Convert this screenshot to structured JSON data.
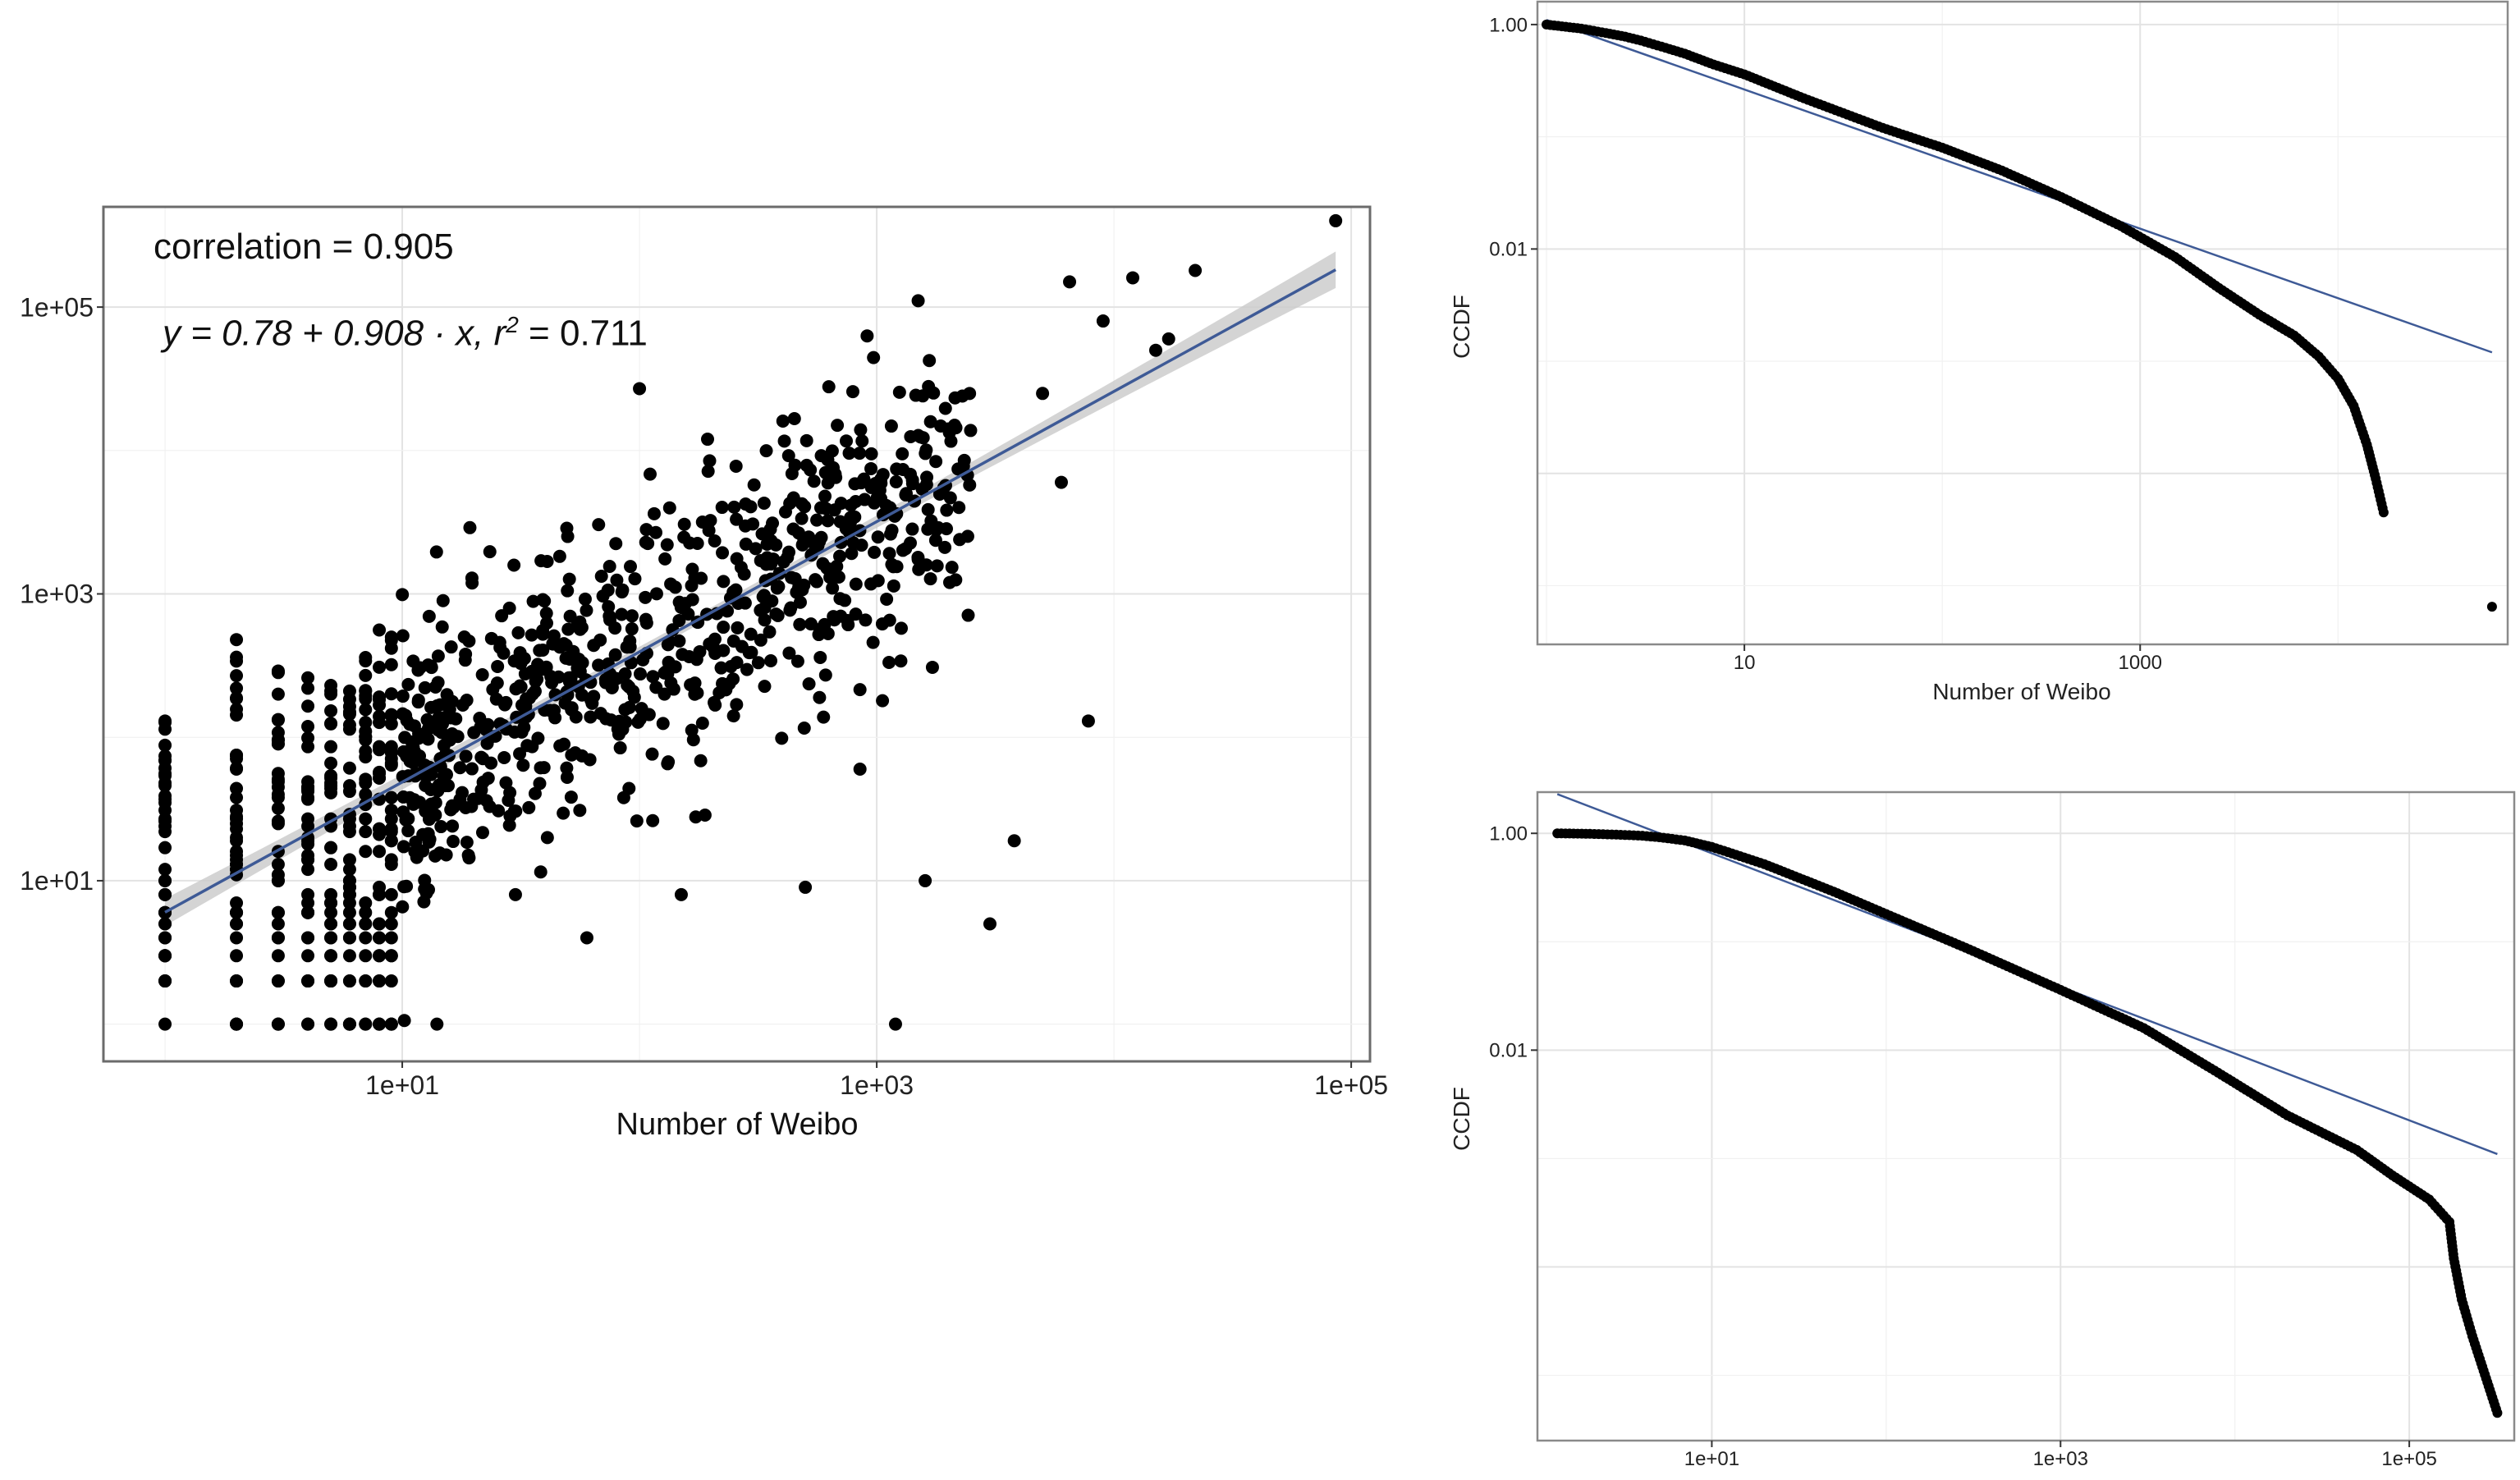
{
  "chart_data": [
    {
      "type": "scatter",
      "panel": "left",
      "xlabel": "Number of Weibo",
      "ylabel": "",
      "x_scale": "log10",
      "y_scale": "log10",
      "xlim": [
        0.55,
        120000
      ],
      "ylim": [
        0.55,
        500000
      ],
      "x_ticks": [
        "1e+01",
        "1e+03",
        "1e+05"
      ],
      "y_ticks": [
        "1e+01",
        "1e+03",
        "1e+05"
      ],
      "grid": true,
      "legend": "none",
      "annotations": {
        "correlation": "correlation = 0.905",
        "equation": "y = 0.78 + 0.908 · x,  r",
        "equation_exp": "2",
        "equation_tail": " = 0.711"
      },
      "fit": {
        "intercept": 0.78,
        "slope": 0.908,
        "r2": 0.711,
        "color": "#3e5a96",
        "band_color": "#c9c9c9"
      },
      "point_color": "#000000",
      "columns": [
        {
          "x": 1,
          "ymax": 130,
          "n": 40
        },
        {
          "x": 2,
          "ymax": 480,
          "n": 45
        },
        {
          "x": 3,
          "ymax": 290,
          "n": 35
        },
        {
          "x": 4,
          "ymax": 260,
          "n": 35
        },
        {
          "x": 5,
          "ymax": 230,
          "n": 35
        },
        {
          "x": 6,
          "ymax": 210,
          "n": 35
        },
        {
          "x": 7,
          "ymax": 360,
          "n": 30
        },
        {
          "x": 8,
          "ymax": 560,
          "n": 30
        },
        {
          "x": 9,
          "ymax": 500,
          "n": 30
        }
      ],
      "cloud": {
        "x_range": [
          10,
          2500
        ],
        "n": 760
      },
      "points": [
        {
          "x": 86000,
          "y": 400000
        },
        {
          "x": 22000,
          "y": 180000
        },
        {
          "x": 12000,
          "y": 160000
        },
        {
          "x": 6500,
          "y": 150000
        },
        {
          "x": 100,
          "y": 27000
        },
        {
          "x": 7800,
          "y": 130
        },
        {
          "x": 3800,
          "y": 19
        },
        {
          "x": 3000,
          "y": 5
        },
        {
          "x": 1600,
          "y": 10
        },
        {
          "x": 1200,
          "y": 1
        },
        {
          "x": 500,
          "y": 9
        },
        {
          "x": 850,
          "y": 60
        },
        {
          "x": 14,
          "y": 1
        },
        {
          "x": 30,
          "y": 8
        },
        {
          "x": 60,
          "y": 4
        },
        {
          "x": 150,
          "y": 8
        },
        {
          "x": 15000,
          "y": 50000
        },
        {
          "x": 17000,
          "y": 60000
        },
        {
          "x": 9000,
          "y": 80000
        },
        {
          "x": 5000,
          "y": 25000
        },
        {
          "x": 6000,
          "y": 6000
        }
      ]
    },
    {
      "type": "scatter",
      "panel": "top-right",
      "xlabel": "Number of Weibo",
      "ylabel": "CCDF",
      "x_scale": "log10",
      "y_scale": "log10",
      "xlim": [
        0.9,
        72000
      ],
      "ylim": [
        3e-06,
        1.6
      ],
      "x_ticks": [
        "10",
        "1000"
      ],
      "y_ticks": [
        "1.00",
        "0.01"
      ],
      "grid": true,
      "legend": "none",
      "fit": {
        "slope": -0.41,
        "x0": 1,
        "y0": 1.1,
        "x1": 60000,
        "y1": 0.0012,
        "color": "#3e5a96"
      },
      "point_color": "#000000",
      "points": [
        {
          "x": 1,
          "y": 1.0
        },
        {
          "x": 1.5,
          "y": 0.92
        },
        {
          "x": 2,
          "y": 0.84
        },
        {
          "x": 2.5,
          "y": 0.78
        },
        {
          "x": 3,
          "y": 0.72
        },
        {
          "x": 4,
          "y": 0.62
        },
        {
          "x": 5,
          "y": 0.55
        },
        {
          "x": 7,
          "y": 0.44
        },
        {
          "x": 10,
          "y": 0.36
        },
        {
          "x": 20,
          "y": 0.22
        },
        {
          "x": 50,
          "y": 0.12
        },
        {
          "x": 100,
          "y": 0.08
        },
        {
          "x": 200,
          "y": 0.05
        },
        {
          "x": 400,
          "y": 0.029
        },
        {
          "x": 800,
          "y": 0.016
        },
        {
          "x": 1500,
          "y": 0.0085
        },
        {
          "x": 2500,
          "y": 0.0045
        },
        {
          "x": 4000,
          "y": 0.0026
        },
        {
          "x": 6000,
          "y": 0.0017
        },
        {
          "x": 8000,
          "y": 0.0011
        },
        {
          "x": 10000,
          "y": 0.0007
        },
        {
          "x": 12000,
          "y": 0.0004
        },
        {
          "x": 14000,
          "y": 0.00018
        },
        {
          "x": 15500,
          "y": 9e-05
        },
        {
          "x": 17000,
          "y": 4.5e-05
        },
        {
          "x": 60000,
          "y": 6.5e-06
        }
      ]
    },
    {
      "type": "scatter",
      "panel": "bottom-right",
      "xlabel": "Number of Weibo",
      "ylabel": "CCDF",
      "x_scale": "log10",
      "y_scale": "log10",
      "xlim": [
        1,
        400000
      ],
      "ylim": [
        2.5e-06,
        2.4
      ],
      "x_ticks": [
        "1e+01",
        "1e+03",
        "1e+05"
      ],
      "y_ticks": [
        "1.00",
        "0.01"
      ],
      "grid": true,
      "legend": "none",
      "fit": {
        "x0": 1.3,
        "y0": 2.3,
        "x1": 320000,
        "y1": 0.0011,
        "color": "#3e5a96"
      },
      "point_color": "#000000",
      "points": [
        {
          "x": 1.3,
          "y": 1.0
        },
        {
          "x": 2,
          "y": 0.99
        },
        {
          "x": 3,
          "y": 0.97
        },
        {
          "x": 4,
          "y": 0.95
        },
        {
          "x": 5,
          "y": 0.92
        },
        {
          "x": 7,
          "y": 0.86
        },
        {
          "x": 10,
          "y": 0.75
        },
        {
          "x": 20,
          "y": 0.52
        },
        {
          "x": 50,
          "y": 0.29
        },
        {
          "x": 100,
          "y": 0.18
        },
        {
          "x": 300,
          "y": 0.085
        },
        {
          "x": 1000,
          "y": 0.036
        },
        {
          "x": 3000,
          "y": 0.016
        },
        {
          "x": 8000,
          "y": 0.0062
        },
        {
          "x": 20000,
          "y": 0.0025
        },
        {
          "x": 50000,
          "y": 0.0012
        },
        {
          "x": 80000,
          "y": 0.0007
        },
        {
          "x": 130000,
          "y": 0.00042
        },
        {
          "x": 170000,
          "y": 0.00026
        },
        {
          "x": 180000,
          "y": 0.00012
        },
        {
          "x": 200000,
          "y": 5e-05
        },
        {
          "x": 230000,
          "y": 2.3e-05
        },
        {
          "x": 320000,
          "y": 4.5e-06
        }
      ]
    }
  ]
}
